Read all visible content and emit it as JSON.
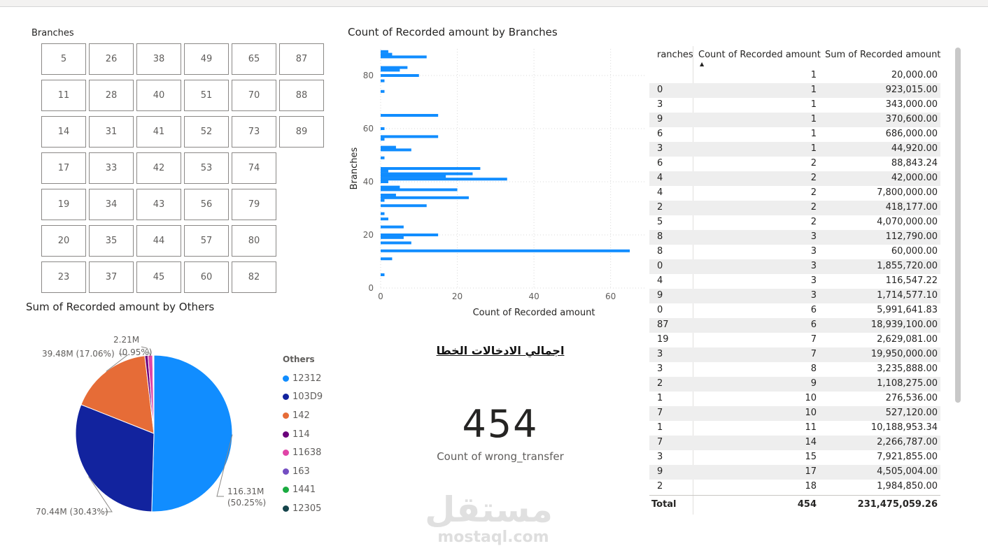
{
  "slicer": {
    "title": "Branches",
    "columns": [
      [
        "5",
        "11",
        "14",
        "17",
        "19",
        "20",
        "23"
      ],
      [
        "26",
        "28",
        "31",
        "33",
        "34",
        "35",
        "37"
      ],
      [
        "38",
        "40",
        "41",
        "42",
        "43",
        "44",
        "45"
      ],
      [
        "49",
        "51",
        "52",
        "53",
        "56",
        "57",
        "60"
      ],
      [
        "65",
        "70",
        "73",
        "74",
        "79",
        "80",
        "82"
      ],
      [
        "87",
        "88",
        "89"
      ]
    ]
  },
  "bar_chart": {
    "title": "Count of Recorded amount by Branches",
    "color": "#118DFF"
  },
  "pie_chart": {
    "title": "Sum of Recorded amount by Others",
    "labels": {
      "l1": "116.31M",
      "l1b": "(50.25%)",
      "l2": "70.44M (30.43%)",
      "l3": "39.48M (17.06%)",
      "l4a": "2.21M",
      "l4b": "(0.95%)"
    },
    "legend_title": "Others",
    "legend": [
      {
        "label": "12312",
        "color": "#118DFF"
      },
      {
        "label": "103D9",
        "color": "#12239E"
      },
      {
        "label": "142",
        "color": "#E66C37"
      },
      {
        "label": "114",
        "color": "#6B007B"
      },
      {
        "label": "11638",
        "color": "#E044A7"
      },
      {
        "label": "163",
        "color": "#744EC2"
      },
      {
        "label": "1441",
        "color": "#1AAB40"
      },
      {
        "label": "12305",
        "color": "#15444B"
      }
    ]
  },
  "card": {
    "title": "اجمالي الادخالات الخطا",
    "value": "454",
    "label": "Count of wrong_transfer"
  },
  "table": {
    "headers": [
      "ranches",
      "Count of Recorded amount",
      "Sum of Recorded amount"
    ],
    "rows": [
      [
        "",
        "1",
        "20,000.00"
      ],
      [
        "0",
        "1",
        "923,015.00"
      ],
      [
        "3",
        "1",
        "343,000.00"
      ],
      [
        "9",
        "1",
        "370,600.00"
      ],
      [
        "6",
        "1",
        "686,000.00"
      ],
      [
        "3",
        "1",
        "44,920.00"
      ],
      [
        "6",
        "2",
        "88,843.24"
      ],
      [
        "4",
        "2",
        "42,000.00"
      ],
      [
        "4",
        "2",
        "7,800,000.00"
      ],
      [
        "2",
        "2",
        "418,177.00"
      ],
      [
        "5",
        "2",
        "4,070,000.00"
      ],
      [
        "8",
        "3",
        "112,790.00"
      ],
      [
        "8",
        "3",
        "60,000.00"
      ],
      [
        "0",
        "3",
        "1,855,720.00"
      ],
      [
        "4",
        "3",
        "116,547.22"
      ],
      [
        "9",
        "3",
        "1,714,577.10"
      ],
      [
        "0",
        "6",
        "5,991,641.83"
      ],
      [
        "87",
        "6",
        "18,939,100.00"
      ],
      [
        "19",
        "7",
        "2,629,081.00"
      ],
      [
        "3",
        "7",
        "19,950,000.00"
      ],
      [
        "3",
        "8",
        "3,235,888.00"
      ],
      [
        "2",
        "9",
        "1,108,275.00"
      ],
      [
        "1",
        "10",
        "276,536.00"
      ],
      [
        "7",
        "10",
        "527,120.00"
      ],
      [
        "1",
        "11",
        "10,188,953.34"
      ],
      [
        "7",
        "14",
        "2,266,787.00"
      ],
      [
        "3",
        "15",
        "7,921,855.00"
      ],
      [
        "9",
        "17",
        "4,505,004.00"
      ],
      [
        "2",
        "18",
        "1,984,850.00"
      ]
    ],
    "total": [
      "Total",
      "454",
      "231,475,059.26"
    ]
  },
  "watermark": {
    "logo": "مستقل",
    "text": "mostaql.com"
  },
  "chart_data": [
    {
      "type": "bar",
      "orientation": "horizontal",
      "title": "Count of Recorded amount by Branches",
      "xlabel": "Count of Recorded amount",
      "ylabel": "Branches",
      "xlim": [
        0,
        67
      ],
      "ylim": [
        0,
        90
      ],
      "x_ticks": [
        "0",
        "20",
        "40",
        "60"
      ],
      "y_ticks": [
        "0",
        "20",
        "40",
        "60",
        "80"
      ],
      "grid": true,
      "series": [
        {
          "y": [
            89,
            88,
            87,
            83,
            82,
            80,
            78,
            74,
            65,
            60,
            57,
            56,
            53,
            52,
            49,
            45,
            44,
            43,
            42,
            41,
            40,
            38,
            37,
            35,
            34,
            33,
            31,
            28,
            26,
            23,
            20,
            19,
            17,
            14,
            11,
            5
          ],
          "values": [
            2,
            3,
            12,
            7,
            5,
            10,
            1,
            1,
            15,
            1,
            15,
            1,
            4,
            8,
            1,
            26,
            2,
            24,
            17,
            33,
            2,
            5,
            20,
            4,
            23,
            1,
            12,
            1,
            2,
            6,
            15,
            6,
            8,
            65,
            3,
            1
          ]
        }
      ]
    },
    {
      "type": "pie",
      "title": "Sum of Recorded amount by Others",
      "categories": [
        "12312",
        "103D9",
        "142",
        "114",
        "11638",
        "163",
        "1441",
        "12305"
      ],
      "values": [
        116.31,
        70.44,
        39.48,
        1.5,
        2.21,
        0.3,
        0.2,
        0.1
      ],
      "unit": "M",
      "legend_position": "right"
    }
  ]
}
